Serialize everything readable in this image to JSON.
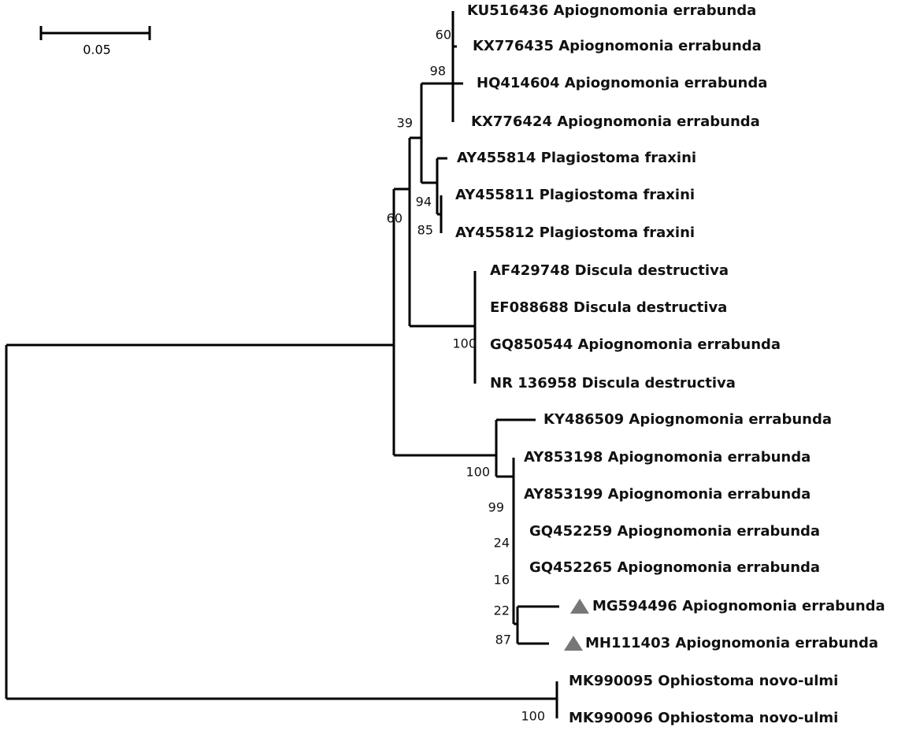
{
  "scale_bar": {
    "label": "0.05"
  },
  "taxa": [
    "KU516436 Apiognomonia errabunda",
    "KX776435 Apiognomonia errabunda",
    "HQ414604 Apiognomonia errabunda",
    "KX776424 Apiognomonia errabunda",
    "AY455814 Plagiostoma fraxini",
    "AY455811 Plagiostoma fraxini",
    "AY455812 Plagiostoma fraxini",
    "AF429748 Discula destructiva",
    "EF088688 Discula destructiva",
    "GQ850544 Apiognomonia errabunda",
    "NR 136958 Discula destructiva",
    "KY486509 Apiognomonia errabunda",
    "AY853198 Apiognomonia errabunda",
    "AY853199 Apiognomonia errabunda",
    "GQ452259 Apiognomonia errabunda",
    "GQ452265 Apiognomonia errabunda",
    "MG594496 Apiognomonia errabunda",
    "MH111403 Apiognomonia errabunda",
    "MK990095 Ophiostoma novo-ulmi",
    "MK990096 Ophiostoma novo-ulmi"
  ],
  "support": [
    60,
    98,
    39,
    94,
    85,
    60,
    100,
    100,
    99,
    24,
    16,
    22,
    87,
    100
  ]
}
